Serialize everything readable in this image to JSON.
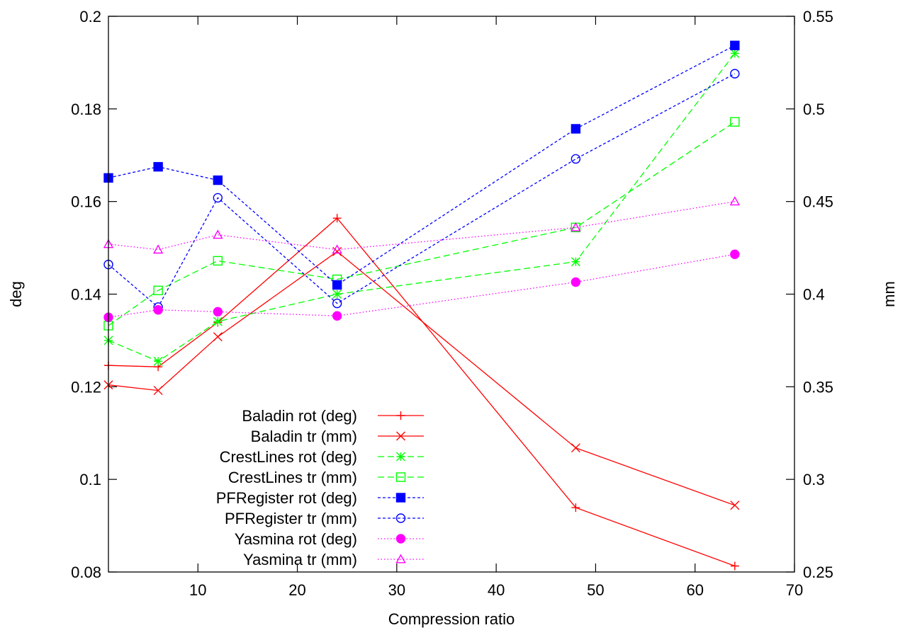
{
  "chart_data": {
    "type": "line",
    "xlabel": "Compression ratio",
    "ylabel": "deg",
    "y2label": "mm",
    "xlim": [
      1,
      70
    ],
    "ylim": [
      0.08,
      0.2
    ],
    "y2lim": [
      0.25,
      0.55
    ],
    "xticks": [
      10,
      20,
      30,
      40,
      50,
      60,
      70
    ],
    "yticks": [
      0.08,
      0.1,
      0.12,
      0.14,
      0.16,
      0.18,
      0.2
    ],
    "y2ticks": [
      0.25,
      0.3,
      0.35,
      0.4,
      0.45,
      0.5,
      0.55
    ],
    "xtick_labels": [
      "10",
      "20",
      "30",
      "40",
      "50",
      "60",
      "70"
    ],
    "ytick_labels": [
      "0.08",
      "0.1",
      "0.12",
      "0.14",
      "0.16",
      "0.18",
      "0.2"
    ],
    "y2tick_labels": [
      "0.25",
      "0.3",
      "0.35",
      "0.4",
      "0.45",
      "0.5",
      "0.55"
    ],
    "grid": false,
    "legend_position": "bottom-left",
    "x": [
      1,
      6,
      12,
      24,
      48,
      64
    ],
    "series": [
      {
        "name": "Baladin rot (deg)",
        "axis": "y",
        "color": "#ff0000",
        "dash": "solid",
        "marker": "plus",
        "values": [
          0.1246,
          0.1243,
          0.1339,
          0.1564,
          0.0939,
          0.0813
        ]
      },
      {
        "name": "Baladin tr (mm)",
        "axis": "y2",
        "color": "#ff0000",
        "dash": "solid",
        "marker": "cross",
        "values": [
          0.351,
          0.348,
          0.377,
          0.423,
          0.317,
          0.286
        ]
      },
      {
        "name": "CrestLines rot (deg)",
        "axis": "y",
        "color": "#00ff00",
        "dash": "long",
        "marker": "star",
        "values": [
          0.13,
          0.1255,
          0.1341,
          0.14,
          0.147,
          0.192
        ]
      },
      {
        "name": "CrestLines tr (mm)",
        "axis": "y2",
        "color": "#00ff00",
        "dash": "long",
        "marker": "square-open",
        "values": [
          0.383,
          0.402,
          0.418,
          0.408,
          0.436,
          0.493
        ]
      },
      {
        "name": "PFRegister rot (deg)",
        "axis": "y",
        "color": "#0000ff",
        "dash": "short",
        "marker": "square-filled",
        "values": [
          0.1651,
          0.1675,
          0.1646,
          0.142,
          0.1757,
          0.1937
        ]
      },
      {
        "name": "PFRegister tr (mm)",
        "axis": "y2",
        "color": "#0000ff",
        "dash": "short",
        "marker": "circle-open",
        "values": [
          0.416,
          0.393,
          0.452,
          0.395,
          0.473,
          0.519
        ]
      },
      {
        "name": "Yasmina rot (deg)",
        "axis": "y",
        "color": "#ff00ff",
        "dash": "dot",
        "marker": "circle-filled",
        "values": [
          0.135,
          0.1366,
          0.1362,
          0.1353,
          0.1426,
          0.1486
        ]
      },
      {
        "name": "Yasmina tr (mm)",
        "axis": "y2",
        "color": "#ff00ff",
        "dash": "dot",
        "marker": "triangle-open",
        "values": [
          0.427,
          0.424,
          0.432,
          0.424,
          0.436,
          0.45
        ]
      }
    ]
  }
}
